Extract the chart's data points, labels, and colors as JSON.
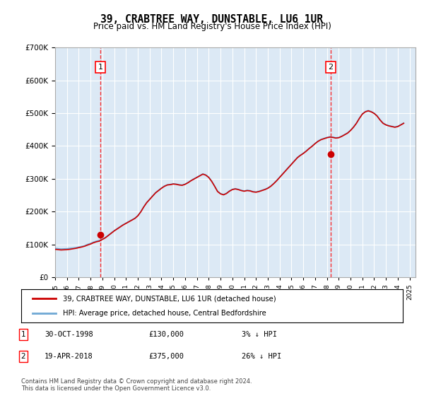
{
  "title": "39, CRABTREE WAY, DUNSTABLE, LU6 1UR",
  "subtitle": "Price paid vs. HM Land Registry's House Price Index (HPI)",
  "xlabel": "",
  "ylabel": "",
  "ylim": [
    0,
    700000
  ],
  "yticks": [
    0,
    100000,
    200000,
    300000,
    400000,
    500000,
    600000,
    700000
  ],
  "background_color": "#dce9f5",
  "plot_bg_color": "#dce9f5",
  "grid_color": "#ffffff",
  "sale1_date": 1998.83,
  "sale1_price": 130000,
  "sale1_label": "1",
  "sale2_date": 2018.3,
  "sale2_price": 375000,
  "sale2_label": "2",
  "hpi_color": "#6fa8d4",
  "price_color": "#cc0000",
  "sale_marker_color": "#cc0000",
  "footnote": "Contains HM Land Registry data © Crown copyright and database right 2024.\nThis data is licensed under the Open Government Licence v3.0.",
  "legend_line1": "39, CRABTREE WAY, DUNSTABLE, LU6 1UR (detached house)",
  "legend_line2": "HPI: Average price, detached house, Central Bedfordshire",
  "table_row1": "1    30-OCT-1998         £130,000         3% ↓ HPI",
  "table_row2": "2    19-APR-2018         £375,000        26% ↓ HPI",
  "hpi_data": {
    "years": [
      1995.0,
      1995.25,
      1995.5,
      1995.75,
      1996.0,
      1996.25,
      1996.5,
      1996.75,
      1997.0,
      1997.25,
      1997.5,
      1997.75,
      1998.0,
      1998.25,
      1998.5,
      1998.75,
      1999.0,
      1999.25,
      1999.5,
      1999.75,
      2000.0,
      2000.25,
      2000.5,
      2000.75,
      2001.0,
      2001.25,
      2001.5,
      2001.75,
      2002.0,
      2002.25,
      2002.5,
      2002.75,
      2003.0,
      2003.25,
      2003.5,
      2003.75,
      2004.0,
      2004.25,
      2004.5,
      2004.75,
      2005.0,
      2005.25,
      2005.5,
      2005.75,
      2006.0,
      2006.25,
      2006.5,
      2006.75,
      2007.0,
      2007.25,
      2007.5,
      2007.75,
      2008.0,
      2008.25,
      2008.5,
      2008.75,
      2009.0,
      2009.25,
      2009.5,
      2009.75,
      2010.0,
      2010.25,
      2010.5,
      2010.75,
      2011.0,
      2011.25,
      2011.5,
      2011.75,
      2012.0,
      2012.25,
      2012.5,
      2012.75,
      2013.0,
      2013.25,
      2013.5,
      2013.75,
      2014.0,
      2014.25,
      2014.5,
      2014.75,
      2015.0,
      2015.25,
      2015.5,
      2015.75,
      2016.0,
      2016.25,
      2016.5,
      2016.75,
      2017.0,
      2017.25,
      2017.5,
      2017.75,
      2018.0,
      2018.25,
      2018.5,
      2018.75,
      2019.0,
      2019.25,
      2019.5,
      2019.75,
      2020.0,
      2020.25,
      2020.5,
      2020.75,
      2021.0,
      2021.25,
      2021.5,
      2021.75,
      2022.0,
      2022.25,
      2022.5,
      2022.75,
      2023.0,
      2023.25,
      2023.5,
      2023.75,
      2024.0,
      2024.25,
      2024.5
    ],
    "values": [
      88000,
      87000,
      86000,
      86500,
      87000,
      88000,
      89000,
      90000,
      92000,
      94000,
      96000,
      100000,
      103000,
      107000,
      110000,
      112000,
      116000,
      121000,
      128000,
      135000,
      142000,
      148000,
      154000,
      160000,
      165000,
      170000,
      175000,
      180000,
      188000,
      200000,
      215000,
      228000,
      238000,
      248000,
      258000,
      265000,
      272000,
      278000,
      282000,
      283000,
      285000,
      284000,
      282000,
      281000,
      284000,
      289000,
      295000,
      300000,
      305000,
      310000,
      315000,
      312000,
      305000,
      293000,
      278000,
      262000,
      255000,
      252000,
      256000,
      263000,
      268000,
      270000,
      268000,
      265000,
      263000,
      265000,
      264000,
      261000,
      260000,
      262000,
      265000,
      268000,
      272000,
      278000,
      286000,
      295000,
      305000,
      315000,
      325000,
      335000,
      345000,
      355000,
      365000,
      372000,
      378000,
      385000,
      393000,
      400000,
      408000,
      415000,
      420000,
      423000,
      426000,
      428000,
      427000,
      425000,
      426000,
      430000,
      435000,
      440000,
      448000,
      458000,
      470000,
      485000,
      498000,
      505000,
      508000,
      505000,
      500000,
      492000,
      480000,
      470000,
      465000,
      462000,
      460000,
      458000,
      460000,
      465000,
      470000
    ]
  },
  "price_data": {
    "years": [
      1995.0,
      1995.25,
      1995.5,
      1995.75,
      1996.0,
      1996.25,
      1996.5,
      1996.75,
      1997.0,
      1997.25,
      1997.5,
      1997.75,
      1998.0,
      1998.25,
      1998.5,
      1998.75,
      1999.0,
      1999.25,
      1999.5,
      1999.75,
      2000.0,
      2000.25,
      2000.5,
      2000.75,
      2001.0,
      2001.25,
      2001.5,
      2001.75,
      2002.0,
      2002.25,
      2002.5,
      2002.75,
      2003.0,
      2003.25,
      2003.5,
      2003.75,
      2004.0,
      2004.25,
      2004.5,
      2004.75,
      2005.0,
      2005.25,
      2005.5,
      2005.75,
      2006.0,
      2006.25,
      2006.5,
      2006.75,
      2007.0,
      2007.25,
      2007.5,
      2007.75,
      2008.0,
      2008.25,
      2008.5,
      2008.75,
      2009.0,
      2009.25,
      2009.5,
      2009.75,
      2010.0,
      2010.25,
      2010.5,
      2010.75,
      2011.0,
      2011.25,
      2011.5,
      2011.75,
      2012.0,
      2012.25,
      2012.5,
      2012.75,
      2013.0,
      2013.25,
      2013.5,
      2013.75,
      2014.0,
      2014.25,
      2014.5,
      2014.75,
      2015.0,
      2015.25,
      2015.5,
      2015.75,
      2016.0,
      2016.25,
      2016.5,
      2016.75,
      2017.0,
      2017.25,
      2017.5,
      2017.75,
      2018.0,
      2018.25,
      2018.5,
      2018.75,
      2019.0,
      2019.25,
      2019.5,
      2019.75,
      2020.0,
      2020.25,
      2020.5,
      2020.75,
      2021.0,
      2021.25,
      2021.5,
      2021.75,
      2022.0,
      2022.25,
      2022.5,
      2022.75,
      2023.0,
      2023.25,
      2023.5,
      2023.75,
      2024.0,
      2024.25,
      2024.5
    ],
    "values": [
      85000,
      84000,
      83000,
      83500,
      84000,
      85000,
      86500,
      88000,
      90000,
      92000,
      94500,
      98000,
      101000,
      105000,
      108000,
      110000,
      115000,
      120000,
      127000,
      134000,
      141000,
      147000,
      153000,
      159000,
      164000,
      169000,
      174000,
      179000,
      187000,
      199000,
      214000,
      227000,
      237000,
      247000,
      257000,
      264000,
      271000,
      277000,
      281000,
      282000,
      284000,
      283000,
      281000,
      280000,
      283000,
      288000,
      294000,
      299000,
      304000,
      309000,
      314000,
      311000,
      304000,
      292000,
      277000,
      261000,
      254000,
      251000,
      255000,
      262000,
      267000,
      269000,
      267000,
      264000,
      262000,
      264000,
      263000,
      260000,
      259000,
      261000,
      264000,
      267000,
      271000,
      277000,
      285000,
      294000,
      304000,
      314000,
      324000,
      334000,
      344000,
      354000,
      364000,
      371000,
      377000,
      384000,
      392000,
      399000,
      407000,
      414000,
      419000,
      422000,
      425000,
      427000,
      426000,
      424000,
      425000,
      429000,
      434000,
      439000,
      447000,
      457000,
      469000,
      484000,
      497000,
      504000,
      507000,
      504000,
      499000,
      491000,
      479000,
      469000,
      464000,
      461000,
      459000,
      457000,
      459000,
      464000,
      469000
    ]
  }
}
